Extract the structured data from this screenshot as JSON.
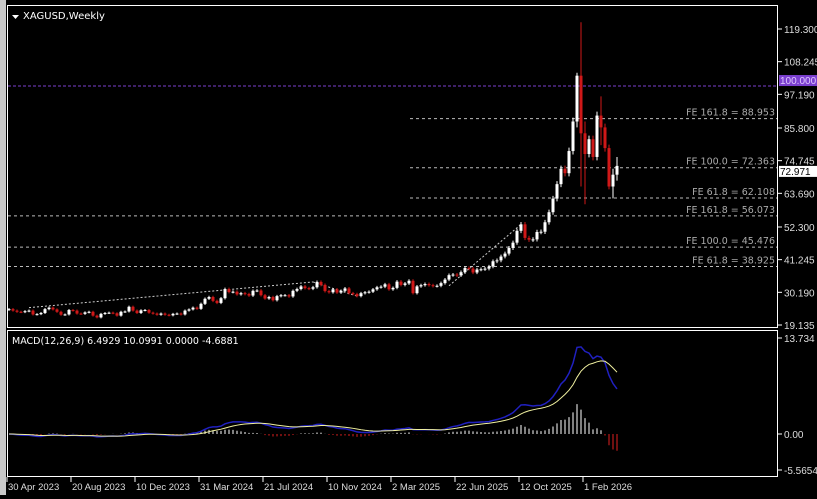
{
  "chart_data": {
    "type": "candlestick",
    "title": "XAGUSD,Weekly",
    "price_axis": {
      "ticks": [
        "119.300",
        "108.245",
        "97.190",
        "85.800",
        "74.745",
        "63.690",
        "52.300",
        "41.245",
        "30.190",
        "19.135"
      ],
      "ylim": [
        18.45,
        127.1
      ]
    },
    "x_ticks": [
      "30 Apr 2023",
      "20 Aug 2023",
      "10 Dec 2023",
      "31 Mar 2024",
      "21 Jul 2024",
      "10 Nov 2024",
      "2 Mar 2025",
      "22 Jun 2025",
      "12 Oct 2025",
      "1 Feb 2026"
    ],
    "x_tick_every_weeks": 16,
    "closes": [
      24.5,
      24,
      23.6,
      23.5,
      23.8,
      24,
      22.7,
      22.8,
      23.2,
      24.5,
      25,
      24.4,
      23.6,
      22.6,
      22.7,
      24.2,
      24,
      23,
      22.9,
      23.4,
      23.6,
      22.3,
      21.7,
      22.9,
      23.2,
      23.3,
      23.1,
      22.3,
      23.6,
      23.7,
      25.3,
      24,
      23.2,
      24.1,
      24.2,
      23.3,
      23,
      22.6,
      23,
      22.6,
      22.4,
      22.9,
      23,
      22.7,
      24,
      24.4,
      25,
      24.6,
      26.3,
      28,
      28.6,
      27.3,
      26.6,
      28.2,
      31.3,
      30.3,
      30.4,
      29.5,
      29.9,
      29.6,
      29.1,
      30.7,
      30.8,
      29.2,
      28.1,
      28.6,
      27.5,
      28.9,
      29.2,
      29.2,
      28.8,
      30.7,
      31.3,
      32.2,
      31.6,
      31.4,
      31.9,
      33.7,
      32.7,
      30.6,
      30.2,
      31.2,
      30.1,
      30.7,
      31.5,
      29.9,
      29.6,
      28.9,
      29.9,
      30.2,
      30.4,
      31.2,
      31.9,
      32.1,
      32.9,
      31.2,
      31.7,
      33.8,
      32.7,
      33.2,
      34.1,
      29.9,
      32.2,
      32.6,
      33,
      32.6,
      32.3,
      32.4,
      33.3,
      34.5,
      36,
      36.2,
      35.9,
      37,
      38.4,
      38.2,
      36.9,
      37.9,
      38,
      38.2,
      38.9,
      40.7,
      41,
      42.3,
      43.3,
      45.2,
      47,
      51,
      53.2,
      48.6,
      48,
      48.1,
      50.6,
      50.7,
      53.9,
      57.3,
      61.9,
      66.8,
      72,
      70.5,
      78,
      88,
      103.5,
      84,
      77,
      82,
      76,
      90,
      86,
      79,
      66,
      70,
      72.971
    ],
    "extremes": [
      {
        "bar": 143,
        "high": 121.6,
        "low": 66
      },
      {
        "bar": 142,
        "high": 104.5,
        "low": 86
      },
      {
        "bar": 144,
        "high": 88,
        "low": 60
      },
      {
        "bar": 148,
        "high": 96.5,
        "low": 80
      },
      {
        "bar": 151,
        "high": 72,
        "low": 62
      },
      {
        "bar": 152,
        "high": 76,
        "low": 68
      }
    ],
    "fibonacci_expansion": [
      {
        "label": "FE 161.8 = 88.953",
        "value": 88.953
      },
      {
        "label": "FE 100.0 = 72.363",
        "value": 72.363
      },
      {
        "label": "FE 61.8 = 62.108",
        "value": 62.108
      },
      {
        "label": "FE 161.8 = 56.073",
        "value": 56.073
      },
      {
        "label": "FE 100.0 = 45.476",
        "value": 45.476
      },
      {
        "label": "FE 61.8 = 38.925",
        "value": 38.925
      }
    ],
    "horizontal_line": {
      "label": "100.000",
      "value": 100.0,
      "color": "#7b3fd0"
    },
    "current_price": {
      "label": "72.971",
      "value": 72.971
    },
    "hidden_tick": "74.745",
    "macd": {
      "label": "MACD(12,26,9) 6.4929 10.0991 0.0000 -4.6881",
      "params": [
        12,
        26,
        9
      ],
      "ticks": [
        "13.734",
        "0.00",
        "-5.5654"
      ],
      "ylim": [
        -5.5654,
        13.734
      ],
      "main_color": "#2020c0",
      "signal_color": "#f0f0a0"
    },
    "colors": {
      "up": "#ffffff",
      "down": "#d01818",
      "background": "#000000"
    }
  }
}
